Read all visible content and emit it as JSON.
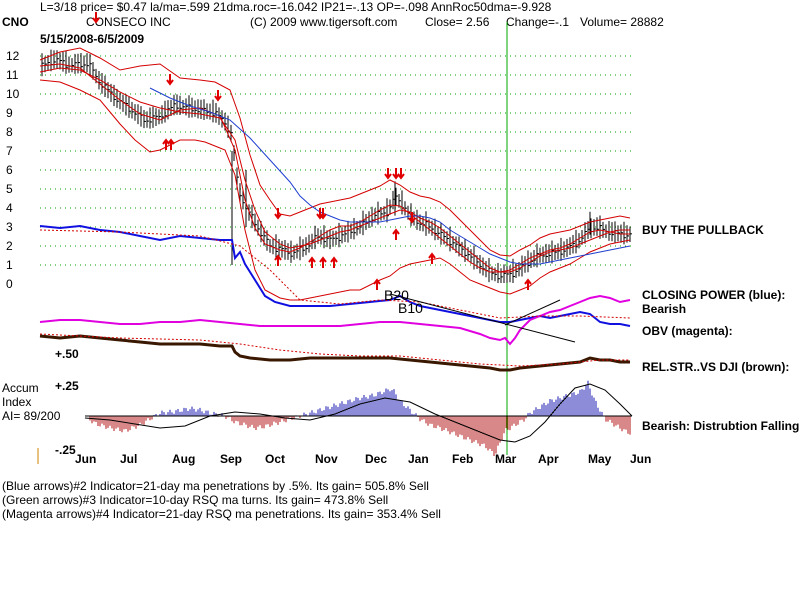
{
  "header": {
    "line1": "L=3/18  price= $0.47  la/ma=.599 21dma.roc=-16.042 IP21=-.13 OP=-.098 AnnRoc50dma=-9.928",
    "ticker": "CNO",
    "company": "CONSECO INC",
    "copyright": "(C) 2009 www.tigersoft.com",
    "close": "Close=  2.56",
    "change": "Change=-.1",
    "volume": "Volume=  28882",
    "date_range": "5/15/2008-6/5/2009"
  },
  "labels": {
    "buy_pullback": "BUY THE PULLBACK",
    "closing_power": "CLOSING POWER (blue):",
    "closing_power_state": "Bearish",
    "obv": "OBV (magenta):",
    "rel_str": "REL.STR..VS DJI (brown):",
    "accum_line1": "Accum",
    "accum_line2": "Index",
    "accum_ai": "AI= 89/200",
    "accum_state": "Bearish:  Distrubtion Falling.",
    "b20": "B20",
    "b10": "B10",
    "accum_hi": "+.25",
    "accum_lo": "-.25",
    "rs_level": "+.50"
  },
  "notes": [
    "(Blue arrows)#2 Indicator=21-day ma penetrations by .5%. Its gain= 505.8% Sell",
    "(Green arrows)#3 Indicator=10-day RSQ ma turns. Its gain= 473.8% Sell",
    "(Magenta arrows)#4 Indicator=21-day RSQ ma penetrations. Its gain= 353.4% Sell"
  ],
  "colors": {
    "price": "#000000",
    "bands": "#d40000",
    "ma50": "#1f3fd0",
    "closing_power": "#1010e0",
    "obv": "#e000e0",
    "rel_str": "#3a1800",
    "accum_pos": "#1a1ab0",
    "accum_neg": "#b01010",
    "vline": "#00aa00",
    "grid": "#00a000"
  },
  "chart_data": {
    "type": "line",
    "y_ticks": [
      "12",
      "11",
      "10",
      "9",
      "8",
      "7",
      "6",
      "5",
      "4",
      "3",
      "2",
      "1",
      "0"
    ],
    "x_ticks": [
      "Jun",
      "Jul",
      "Aug",
      "Sep",
      "Oct",
      "Nov",
      "Dec",
      "Jan",
      "Feb",
      "Mar",
      "Apr",
      "May",
      "Jun"
    ],
    "grid": true,
    "series": [
      {
        "name": "",
        "x": [
          "Jun",
          "Jul",
          "Aug",
          "Sep",
          "Oct",
          "Nov",
          "Dec",
          "Jan",
          "Feb",
          "Mar",
          "Apr",
          "May",
          "Jun"
        ],
        "values": [
          11.5,
          9.6,
          8.9,
          7.7,
          1.4,
          1.5,
          3.5,
          3.6,
          1.2,
          0.5,
          1.4,
          2.8,
          2.6
        ]
      }
    ],
    "ylim": [
      0,
      12
    ]
  }
}
